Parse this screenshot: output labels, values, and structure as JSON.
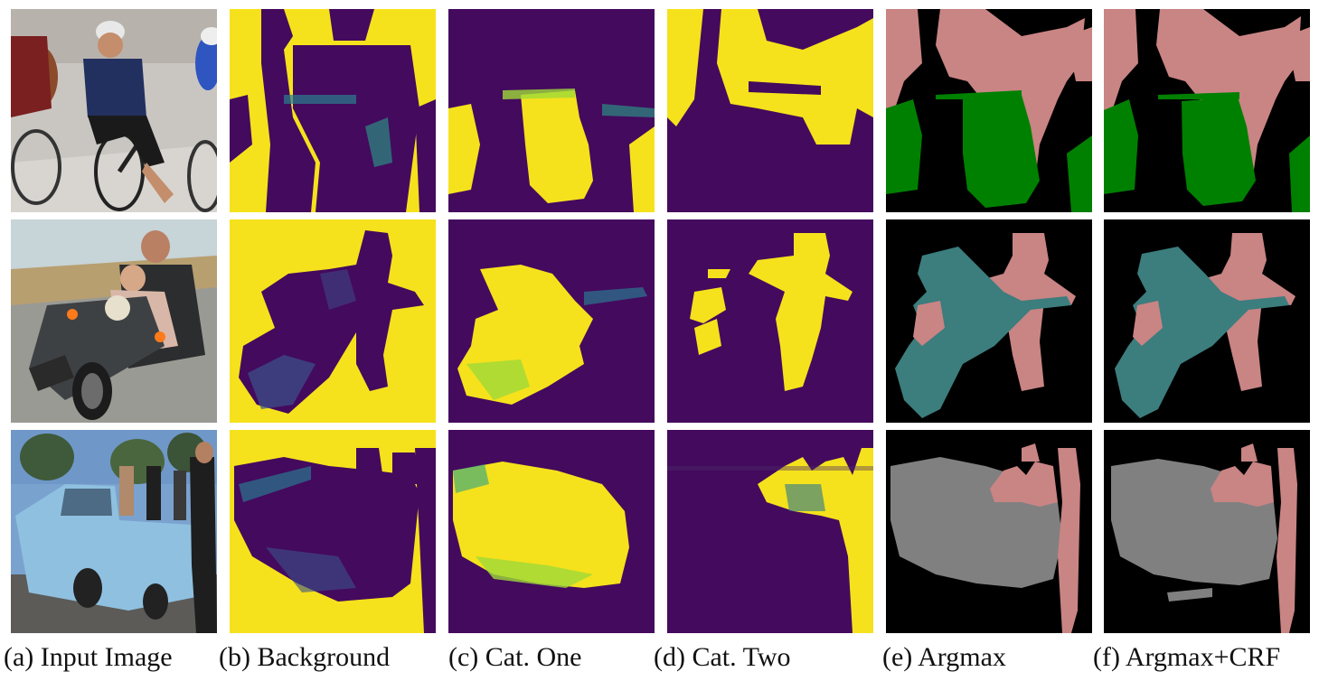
{
  "figure": {
    "panels": [
      {
        "label": "(a) Input Image"
      },
      {
        "label": "(b) Background"
      },
      {
        "label": "(c) Cat. One"
      },
      {
        "label": "(d) Cat. Two"
      },
      {
        "label": "(e) Argmax"
      },
      {
        "label": "(f) Argmax+CRF"
      }
    ],
    "colors": {
      "heat_low": "#440a5e",
      "heat_high": "#f5e21c",
      "seg_background": "#000000",
      "seg_person": "#c98484",
      "seg_bicycle": "#008000",
      "seg_motorbike": "#3c7d7d",
      "seg_car": "#808080"
    }
  }
}
